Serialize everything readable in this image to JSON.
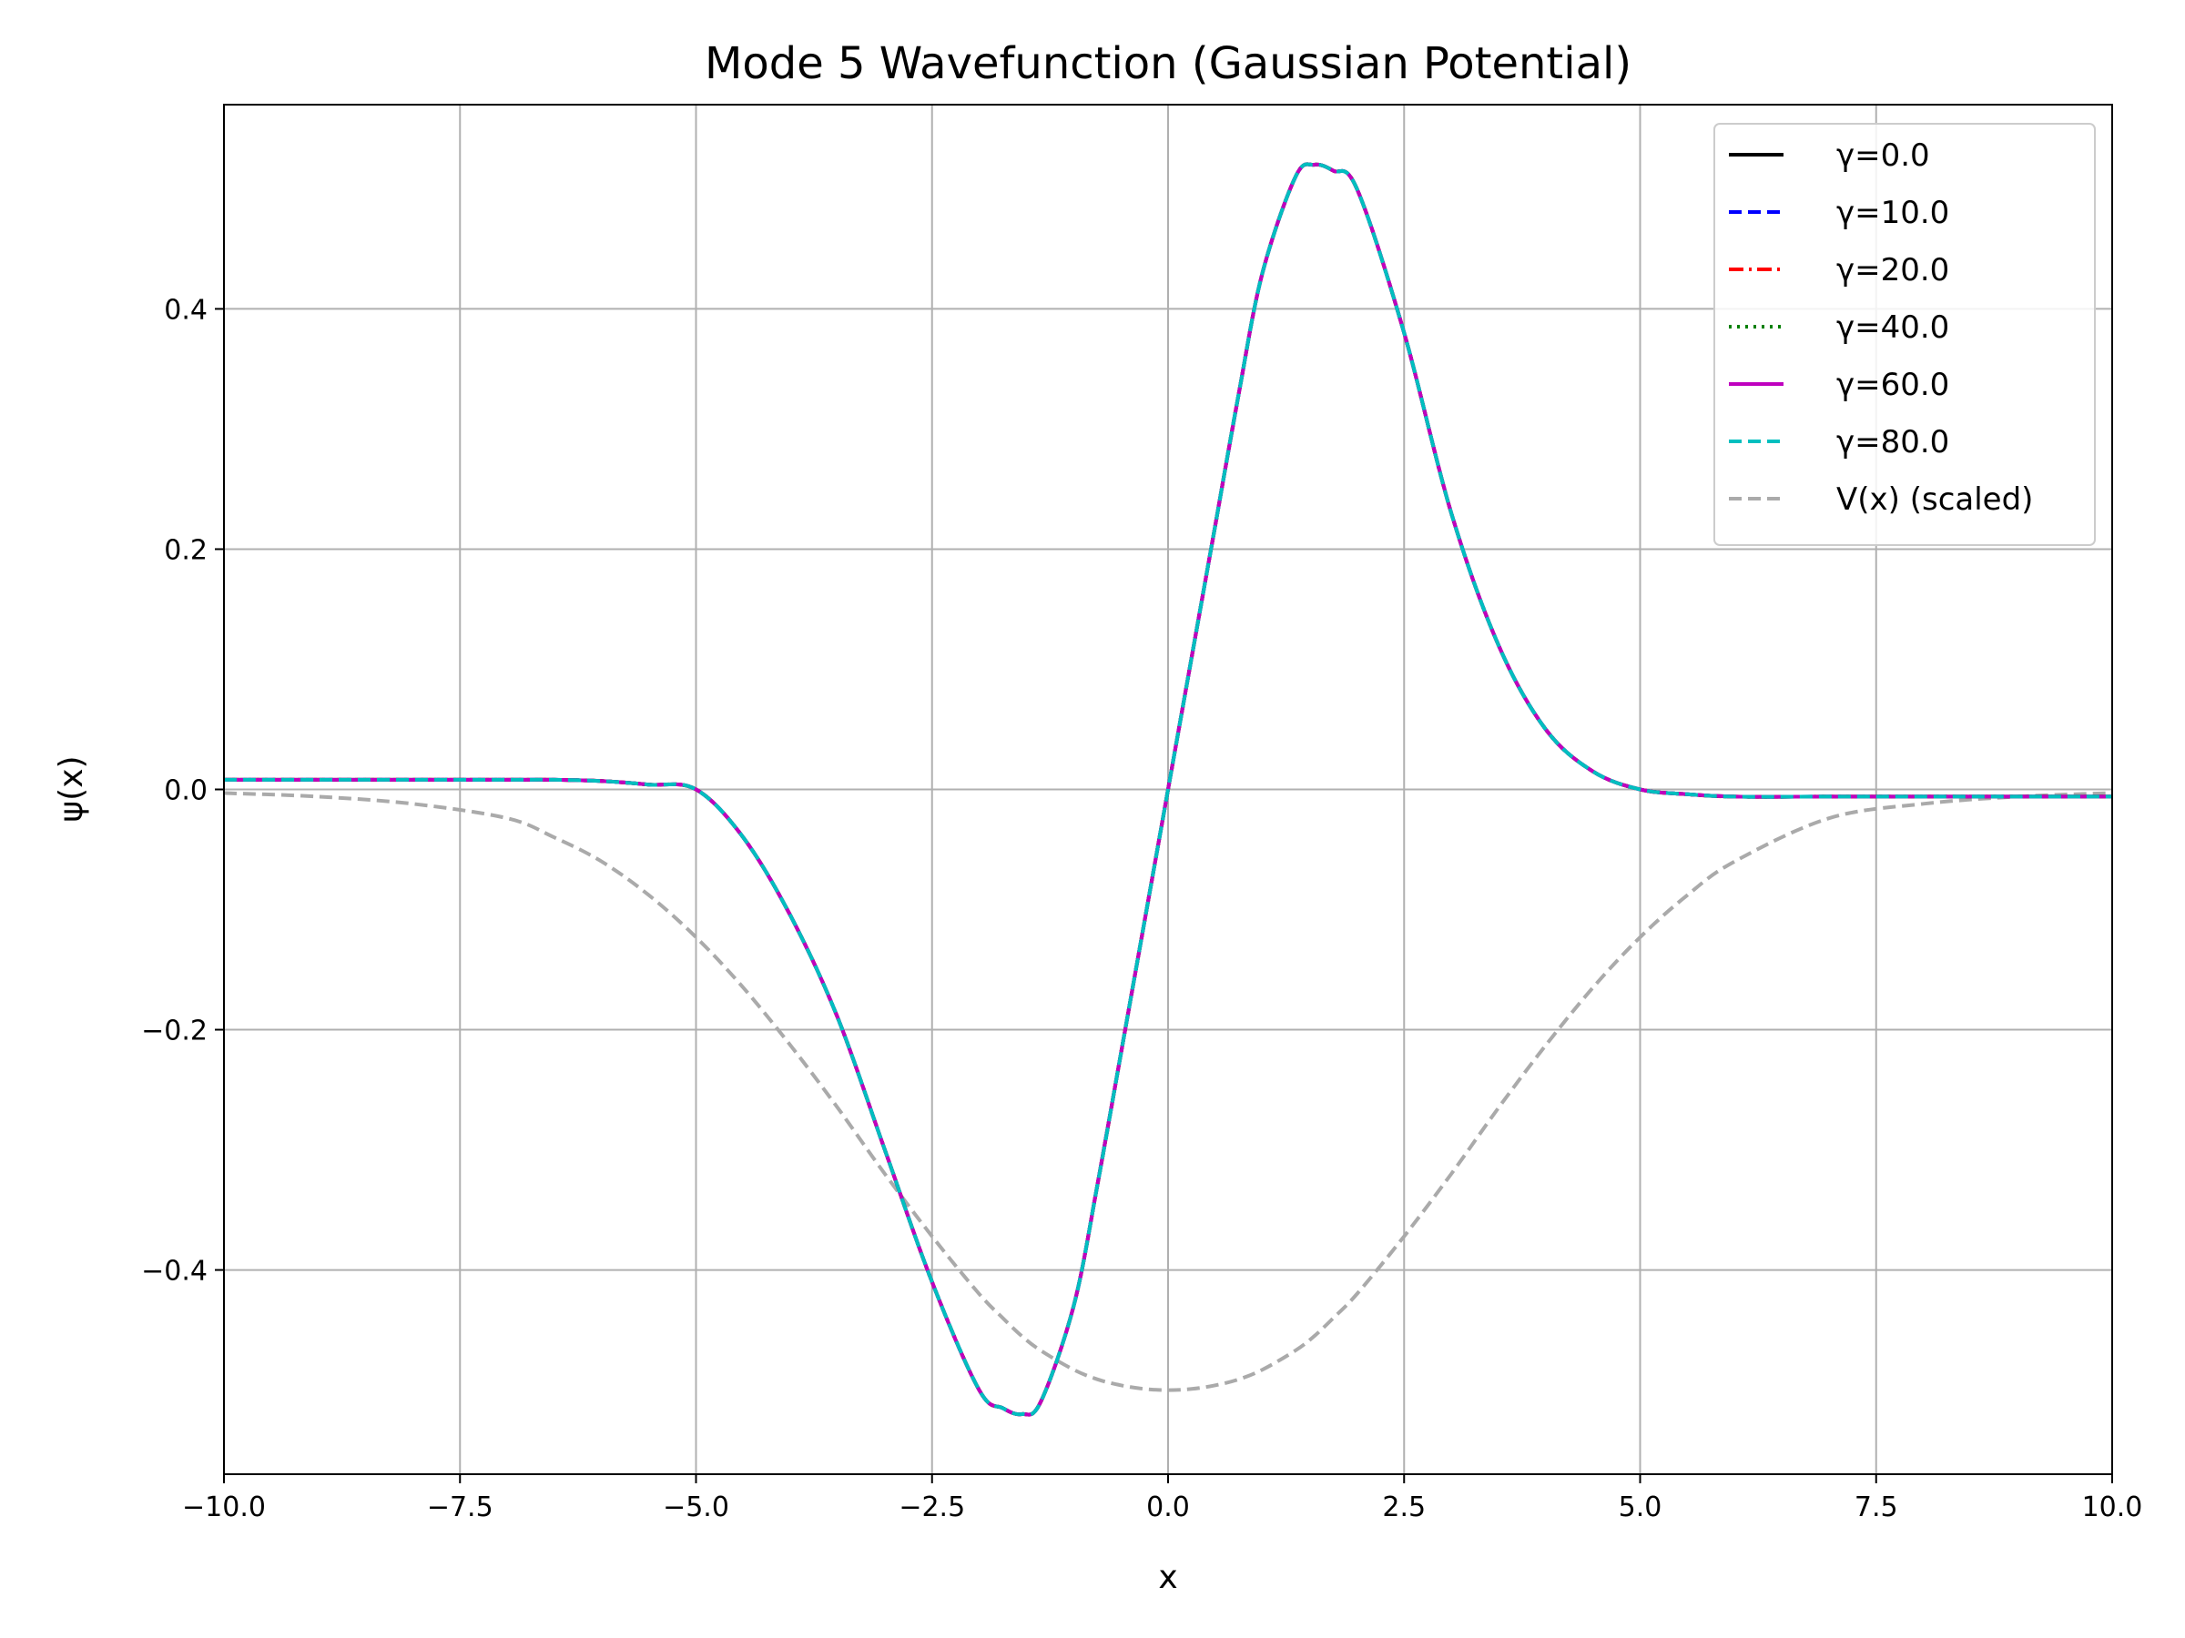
{
  "chart_data": {
    "type": "line",
    "title": "Mode 5 Wavefunction (Gaussian Potential)",
    "xlabel": "x",
    "ylabel": "ψ(x)",
    "xlim": [
      -10,
      10
    ],
    "ylim": [
      -0.57,
      0.57
    ],
    "xticks": [
      -10,
      -7.5,
      -5,
      -2.5,
      0,
      2.5,
      5,
      7.5,
      10
    ],
    "xtick_labels": [
      "−10.0",
      "−7.5",
      "−5.0",
      "−2.5",
      "0.0",
      "2.5",
      "5.0",
      "7.5",
      "10.0"
    ],
    "yticks": [
      -0.4,
      -0.2,
      0.0,
      0.2,
      0.4
    ],
    "ytick_labels": [
      "−0.4",
      "−0.2",
      "0.0",
      "0.2",
      "0.4"
    ],
    "grid": true,
    "legend_position": "top-right",
    "x": [
      -10,
      -9,
      -8,
      -7,
      -6.5,
      -6,
      -5.5,
      -5,
      -4.5,
      -4,
      -3.5,
      -3,
      -2.5,
      -2,
      -1.75,
      -1.55,
      -1.35,
      -1,
      -0.75,
      -0.5,
      -0.25,
      0,
      0.25,
      0.5,
      0.75,
      1,
      1.35,
      1.55,
      1.75,
      2,
      2.5,
      3,
      3.5,
      4,
      4.5,
      5,
      5.5,
      6,
      7,
      8,
      9,
      10
    ],
    "series": [
      {
        "name": "γ=0.0",
        "color": "#000000",
        "dash": "solid",
        "values": [
          0.008,
          0.008,
          0.008,
          0.008,
          0.008,
          0.007,
          0.004,
          0.0,
          -0.04,
          -0.105,
          -0.19,
          -0.3,
          -0.41,
          -0.5,
          -0.515,
          -0.52,
          -0.51,
          -0.43,
          -0.33,
          -0.22,
          -0.11,
          0.0,
          0.11,
          0.22,
          0.33,
          0.43,
          0.51,
          0.52,
          0.515,
          0.5,
          0.38,
          0.23,
          0.12,
          0.05,
          0.015,
          0.0,
          -0.004,
          -0.006,
          -0.006,
          -0.006,
          -0.006,
          -0.006
        ]
      },
      {
        "name": "γ=10.0",
        "color": "#0000ff",
        "dash": "dashed",
        "values": [
          0.008,
          0.008,
          0.008,
          0.008,
          0.008,
          0.007,
          0.004,
          0.0,
          -0.04,
          -0.105,
          -0.19,
          -0.3,
          -0.41,
          -0.5,
          -0.515,
          -0.52,
          -0.51,
          -0.43,
          -0.33,
          -0.22,
          -0.11,
          0.0,
          0.11,
          0.22,
          0.33,
          0.43,
          0.51,
          0.52,
          0.515,
          0.5,
          0.38,
          0.23,
          0.12,
          0.05,
          0.015,
          0.0,
          -0.004,
          -0.006,
          -0.006,
          -0.006,
          -0.006,
          -0.006
        ]
      },
      {
        "name": "γ=20.0",
        "color": "#ff0000",
        "dash": "dashdot",
        "values": [
          0.008,
          0.008,
          0.008,
          0.008,
          0.008,
          0.007,
          0.004,
          0.0,
          -0.04,
          -0.105,
          -0.19,
          -0.3,
          -0.41,
          -0.5,
          -0.515,
          -0.52,
          -0.51,
          -0.43,
          -0.33,
          -0.22,
          -0.11,
          0.0,
          0.11,
          0.22,
          0.33,
          0.43,
          0.51,
          0.52,
          0.515,
          0.5,
          0.38,
          0.23,
          0.12,
          0.05,
          0.015,
          0.0,
          -0.004,
          -0.006,
          -0.006,
          -0.006,
          -0.006,
          -0.006
        ]
      },
      {
        "name": "γ=40.0",
        "color": "#008000",
        "dash": "dotted",
        "values": [
          0.008,
          0.008,
          0.008,
          0.008,
          0.008,
          0.007,
          0.004,
          0.0,
          -0.04,
          -0.105,
          -0.19,
          -0.3,
          -0.41,
          -0.5,
          -0.515,
          -0.52,
          -0.51,
          -0.43,
          -0.33,
          -0.22,
          -0.11,
          0.0,
          0.11,
          0.22,
          0.33,
          0.43,
          0.51,
          0.52,
          0.515,
          0.5,
          0.38,
          0.23,
          0.12,
          0.05,
          0.015,
          0.0,
          -0.004,
          -0.006,
          -0.006,
          -0.006,
          -0.006,
          -0.006
        ]
      },
      {
        "name": "γ=60.0",
        "color": "#bf00bf",
        "dash": "solid",
        "values": [
          0.008,
          0.008,
          0.008,
          0.008,
          0.008,
          0.007,
          0.004,
          0.0,
          -0.04,
          -0.105,
          -0.19,
          -0.3,
          -0.41,
          -0.5,
          -0.515,
          -0.52,
          -0.51,
          -0.43,
          -0.33,
          -0.22,
          -0.11,
          0.0,
          0.11,
          0.22,
          0.33,
          0.43,
          0.51,
          0.52,
          0.515,
          0.5,
          0.38,
          0.23,
          0.12,
          0.05,
          0.015,
          0.0,
          -0.004,
          -0.006,
          -0.006,
          -0.006,
          -0.006,
          -0.006
        ]
      },
      {
        "name": "γ=80.0",
        "color": "#00bfbf",
        "dash": "dashed",
        "values": [
          0.008,
          0.008,
          0.008,
          0.008,
          0.008,
          0.007,
          0.004,
          0.0,
          -0.04,
          -0.105,
          -0.19,
          -0.3,
          -0.41,
          -0.5,
          -0.515,
          -0.52,
          -0.51,
          -0.43,
          -0.33,
          -0.22,
          -0.11,
          0.0,
          0.11,
          0.22,
          0.33,
          0.43,
          0.51,
          0.52,
          0.515,
          0.5,
          0.38,
          0.23,
          0.12,
          0.05,
          0.015,
          0.0,
          -0.004,
          -0.006,
          -0.006,
          -0.006,
          -0.006,
          -0.006
        ]
      },
      {
        "name": "V(x) (scaled)",
        "color": "#aaaaaa",
        "dash": "dashed",
        "values": [
          -0.003,
          -0.006,
          -0.012,
          -0.024,
          -0.04,
          -0.06,
          -0.088,
          -0.123,
          -0.165,
          -0.213,
          -0.265,
          -0.32,
          -0.372,
          -0.42,
          -0.44,
          -0.455,
          -0.467,
          -0.483,
          -0.491,
          -0.496,
          -0.499,
          -0.5,
          -0.499,
          -0.496,
          -0.491,
          -0.483,
          -0.467,
          -0.455,
          -0.44,
          -0.42,
          -0.372,
          -0.32,
          -0.265,
          -0.213,
          -0.165,
          -0.123,
          -0.088,
          -0.06,
          -0.024,
          -0.012,
          -0.006,
          -0.003
        ]
      }
    ]
  }
}
